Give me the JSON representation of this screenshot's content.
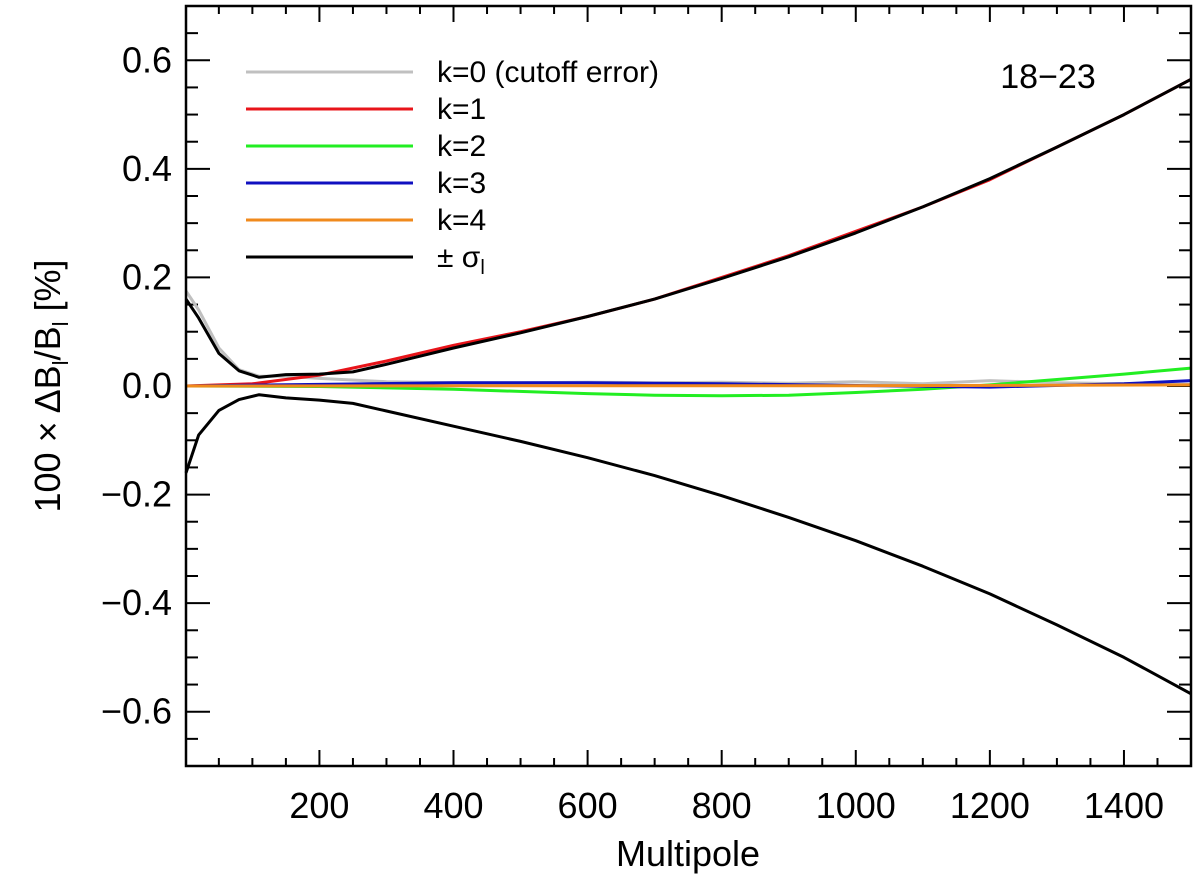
{
  "chart_data": {
    "type": "line",
    "title": "",
    "annotation": "18−23",
    "xlabel": "Multipole",
    "ylabel_parts": {
      "prefix": "100 × ΔB",
      "sub1": "l",
      "mid": "/B",
      "sub2": "l",
      "suffix": " [%]"
    },
    "xlim": [
      1,
      1500
    ],
    "ylim": [
      -0.7,
      0.7
    ],
    "xticks": [
      200,
      400,
      600,
      800,
      1000,
      1200,
      1400
    ],
    "xtick_labels": [
      "200",
      "400",
      "600",
      "800",
      "1000",
      "1200",
      "1400"
    ],
    "yticks": [
      0.6,
      0.4,
      0.2,
      0.0,
      -0.2,
      -0.4,
      -0.6
    ],
    "ytick_labels": [
      "0.6",
      "0.4",
      "0.2",
      "0.0",
      "−0.2",
      "−0.4",
      "−0.6"
    ],
    "legend": {
      "location": "top-left",
      "entries": [
        {
          "label": "k=0 (cutoff error)",
          "color": "#c0c0c0"
        },
        {
          "label": "k=1",
          "color": "#e8141a"
        },
        {
          "label": "k=2",
          "color": "#22ee22"
        },
        {
          "label": "k=3",
          "color": "#1010c0"
        },
        {
          "label": "k=4",
          "color": "#f08a1c"
        },
        {
          "label": "± σ",
          "sub": "l",
          "color": "#000000"
        }
      ]
    },
    "series": [
      {
        "name": "k=0 (cutoff error)",
        "color": "#c0c0c0",
        "x": [
          1,
          20,
          50,
          80,
          110,
          150,
          200,
          300,
          400,
          500,
          600,
          700,
          800,
          900,
          1000,
          1100,
          1200,
          1300,
          1400,
          1500
        ],
        "y": [
          0.175,
          0.14,
          0.07,
          0.03,
          0.018,
          0.018,
          0.014,
          0.008,
          0.006,
          0.006,
          0.007,
          0.006,
          0.007,
          0.005,
          0.008,
          0.004,
          0.01,
          0.006,
          0.004,
          0.003
        ]
      },
      {
        "name": "k=1",
        "color": "#e8141a",
        "x": [
          1,
          100,
          200,
          300,
          400,
          500,
          600,
          700,
          800,
          900,
          1000,
          1100,
          1200,
          1300,
          1400,
          1500
        ],
        "y": [
          0.0,
          0.004,
          0.02,
          0.046,
          0.075,
          0.1,
          0.128,
          0.16,
          0.2,
          0.24,
          0.285,
          0.33,
          0.38,
          0.44,
          0.5,
          0.565
        ]
      },
      {
        "name": "k=2",
        "color": "#22ee22",
        "x": [
          1,
          200,
          400,
          600,
          700,
          800,
          900,
          1000,
          1100,
          1200,
          1300,
          1400,
          1500
        ],
        "y": [
          0.0,
          -0.001,
          -0.006,
          -0.014,
          -0.017,
          -0.018,
          -0.017,
          -0.012,
          -0.006,
          0.002,
          0.012,
          0.022,
          0.033
        ]
      },
      {
        "name": "k=3",
        "color": "#1010c0",
        "x": [
          1,
          200,
          400,
          600,
          800,
          1000,
          1200,
          1400,
          1500
        ],
        "y": [
          0.0,
          0.003,
          0.006,
          0.006,
          0.004,
          0.001,
          -0.002,
          0.004,
          0.01
        ]
      },
      {
        "name": "k=4",
        "color": "#f08a1c",
        "x": [
          1,
          500,
          1000,
          1500
        ],
        "y": [
          0.0,
          0.0005,
          0.0005,
          0.002
        ]
      },
      {
        "name": "+σ_l",
        "color": "#000000",
        "x": [
          1,
          20,
          50,
          80,
          110,
          150,
          200,
          250,
          300,
          400,
          500,
          600,
          700,
          800,
          900,
          1000,
          1100,
          1200,
          1300,
          1400,
          1500
        ],
        "y": [
          0.16,
          0.125,
          0.06,
          0.028,
          0.016,
          0.021,
          0.022,
          0.026,
          0.04,
          0.07,
          0.098,
          0.128,
          0.16,
          0.198,
          0.238,
          0.282,
          0.33,
          0.382,
          0.44,
          0.5,
          0.565
        ]
      },
      {
        "name": "−σ_l",
        "color": "#000000",
        "x": [
          1,
          20,
          50,
          80,
          110,
          150,
          200,
          250,
          300,
          400,
          500,
          600,
          700,
          800,
          900,
          1000,
          1100,
          1200,
          1300,
          1400,
          1500
        ],
        "y": [
          -0.16,
          -0.09,
          -0.045,
          -0.025,
          -0.016,
          -0.022,
          -0.026,
          -0.032,
          -0.046,
          -0.074,
          -0.102,
          -0.132,
          -0.165,
          -0.202,
          -0.242,
          -0.285,
          -0.332,
          -0.383,
          -0.44,
          -0.5,
          -0.567
        ]
      }
    ]
  }
}
